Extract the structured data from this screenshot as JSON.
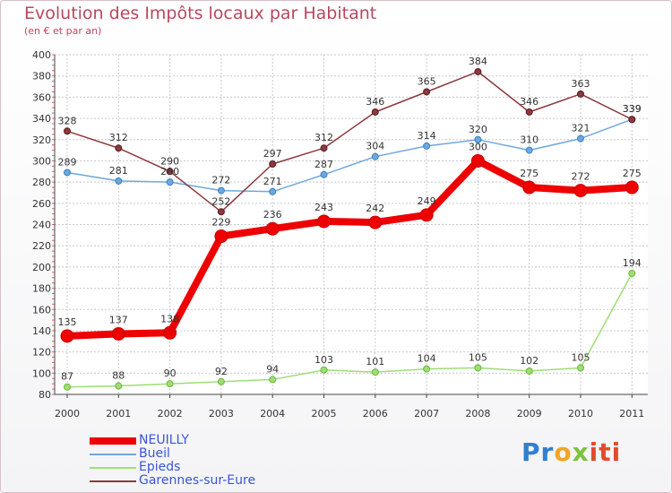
{
  "header": {
    "title": "Evolution des Impôts locaux par Habitant",
    "subtitle": "(en € et par an)"
  },
  "logo": {
    "parts": [
      "Pr",
      "o",
      "x",
      "iti"
    ],
    "colors": [
      "#2f7fd3",
      "#f2a424",
      "#7cc23e",
      "#e24b2c"
    ]
  },
  "chart_data": {
    "type": "line",
    "title": "Evolution des Impôts locaux par Habitant",
    "subtitle": "(en € et par an)",
    "xlabel": "",
    "ylabel": "",
    "x": [
      "2000",
      "2001",
      "2002",
      "2003",
      "2004",
      "2005",
      "2006",
      "2007",
      "2008",
      "2009",
      "2010",
      "2011"
    ],
    "ylim": [
      80,
      400
    ],
    "yticks": [
      80,
      100,
      120,
      140,
      160,
      180,
      200,
      220,
      240,
      260,
      280,
      300,
      320,
      340,
      360,
      380,
      400
    ],
    "grid": true,
    "legend": "bottom-left",
    "series": [
      {
        "name": "NEUILLY",
        "color": "#ee0000",
        "values": [
          135,
          137,
          138,
          229,
          236,
          243,
          242,
          249,
          300,
          275,
          272,
          275
        ],
        "labels": [
          "135",
          "137",
          "138",
          "229",
          "236",
          "243",
          "242",
          "249",
          "300",
          "275",
          "272",
          "275"
        ]
      },
      {
        "name": "Bueil",
        "color": "#6fa8dc",
        "values": [
          289,
          281,
          280,
          272,
          271,
          287,
          304,
          314,
          320,
          310,
          321,
          339
        ],
        "labels": [
          "289",
          "281",
          "280",
          "272",
          "271",
          "287",
          "304",
          "314",
          "320",
          "310",
          "321",
          "339"
        ]
      },
      {
        "name": "Epieds",
        "color": "#9ede74",
        "values": [
          87,
          88,
          90,
          92,
          94,
          103,
          101,
          104,
          105,
          102,
          105,
          194
        ],
        "labels": [
          "87",
          "88",
          "90",
          "92",
          "94",
          "103",
          "101",
          "104",
          "105",
          "102",
          "105",
          "194"
        ]
      },
      {
        "name": "Garennes-sur-Eure",
        "color": "#8b3a3e",
        "values": [
          328,
          312,
          290,
          252,
          297,
          312,
          346,
          365,
          384,
          346,
          363,
          339
        ],
        "labels": [
          "328",
          "312",
          "290",
          "252",
          "297",
          "312",
          "346",
          "365",
          "384",
          "346",
          "363",
          "339"
        ]
      }
    ]
  }
}
